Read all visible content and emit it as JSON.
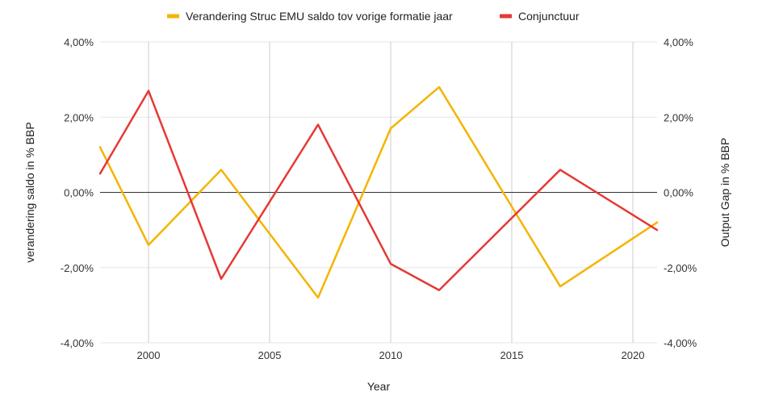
{
  "chart_data": {
    "type": "line",
    "title": "",
    "xlabel": "Year",
    "ylabel_left": "verandering saldo in % BBP",
    "ylabel_right": "Output Gap in % BBP",
    "xlim": [
      1998,
      2021
    ],
    "ylim": [
      -4,
      4
    ],
    "x_ticks": [
      2000,
      2005,
      2010,
      2015,
      2020
    ],
    "y_ticks": [
      4,
      2,
      0,
      -2,
      -4
    ],
    "y_tick_labels": [
      "4,00%",
      "2,00%",
      "0,00%",
      "-2,00%",
      "-4,00%"
    ],
    "grid": "vertical",
    "legend_position": "top",
    "series": [
      {
        "name": "Verandering Struc EMU saldo tov vorige formatie jaar",
        "color": "#f4b400",
        "axis": "left",
        "x": [
          1998,
          2000,
          2003,
          2007,
          2010,
          2012,
          2017,
          2021
        ],
        "values": [
          1.2,
          -1.4,
          0.6,
          -2.8,
          1.7,
          2.8,
          -2.5,
          -0.8
        ]
      },
      {
        "name": "Conjunctuur",
        "color": "#e53935",
        "axis": "right",
        "x": [
          1998,
          2000,
          2003,
          2007,
          2010,
          2012,
          2017,
          2021
        ],
        "values": [
          0.5,
          2.7,
          -2.3,
          1.8,
          -1.9,
          -2.6,
          0.6,
          -1.0
        ]
      }
    ]
  }
}
